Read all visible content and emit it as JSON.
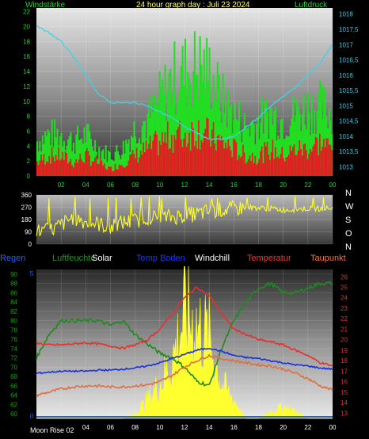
{
  "header": {
    "windstaerke": "Windstärke",
    "title": "24 hour graph day : Juli 23 2024",
    "luftdruck": "Luftdruck"
  },
  "legend": {
    "regen": "Regen",
    "luftfeuchte": "Luftfeuchte",
    "solar": "Solar",
    "temp_boden": "Temp Boden",
    "windchill": "Windchill",
    "temperatur": "Temperatur",
    "taupunkt": "Taupunkt"
  },
  "footer": {
    "moon": "Moon Rise 02"
  },
  "compass": [
    "N",
    "W",
    "S",
    "O",
    "N"
  ],
  "colors": {
    "wind_gust": "#22dd22",
    "wind_avg": "#e02020",
    "pressure": "#40d0e8",
    "direction": "#ffff20",
    "humidity": "#1f8a1f",
    "soil": "#1a2fe0",
    "temp": "#e83030",
    "dew": "#e07040",
    "solar": "#ffff30"
  },
  "x_ticks": [
    "02",
    "04",
    "06",
    "08",
    "10",
    "12",
    "14",
    "16",
    "18",
    "20",
    "22",
    "00"
  ],
  "chart_data": [
    {
      "type": "bar",
      "title": "24 hour graph day : Juli 23 2024",
      "ylabel": "Windstärke",
      "y2label": "Luftdruck",
      "ylim": [
        0,
        22.5
      ],
      "y_ticks": [
        0,
        2,
        4,
        6,
        8,
        10,
        12,
        14,
        16,
        18,
        20,
        22
      ],
      "y2lim": [
        1012.7,
        1018.2
      ],
      "y2_ticks": [
        "1013",
        "1013,5",
        "1014",
        "1014,5",
        "1015",
        "1015,5",
        "1016",
        "1016,5",
        "1017",
        "1017,5",
        "1018"
      ],
      "x": [
        0,
        1,
        2,
        3,
        4,
        5,
        6,
        7,
        8,
        9,
        10,
        11,
        12,
        13,
        14,
        15,
        16,
        17,
        18,
        19,
        20,
        21,
        22,
        23,
        24
      ],
      "series": [
        {
          "values": [
            5,
            6,
            6,
            5,
            6,
            4,
            3,
            4,
            7,
            8,
            11,
            14,
            15,
            16,
            15,
            11,
            9,
            7,
            8,
            9,
            8,
            9,
            10,
            10,
            9
          ]
        },
        {
          "values": [
            2,
            3,
            3,
            2,
            3,
            2,
            1,
            2,
            3,
            4,
            5,
            6,
            6,
            7,
            6,
            5,
            4,
            3,
            3,
            4,
            3,
            4,
            4,
            5,
            4
          ]
        },
        {
          "values": [
            1017.6,
            1017.4,
            1017.1,
            1016.6,
            1016.0,
            1015.4,
            1015.1,
            1015.1,
            1015.1,
            1015.0,
            1014.8,
            1014.6,
            1014.3,
            1014.1,
            1013.9,
            1013.9,
            1014.0,
            1014.3,
            1014.6,
            1015.0,
            1015.3,
            1015.6,
            1016.0,
            1016.4,
            1017.0
          ]
        }
      ]
    },
    {
      "type": "line",
      "ylim": [
        0,
        360
      ],
      "y_ticks": [
        0,
        90,
        180,
        270,
        360
      ],
      "x": [
        0,
        1,
        2,
        3,
        4,
        5,
        6,
        7,
        8,
        9,
        10,
        11,
        12,
        13,
        14,
        15,
        16,
        17,
        18,
        19,
        20,
        21,
        22,
        23,
        24
      ],
      "series": [
        {
          "values": [
            90,
            95,
            140,
            200,
            160,
            150,
            120,
            160,
            170,
            200,
            190,
            200,
            210,
            220,
            240,
            250,
            260,
            270,
            265,
            260,
            250,
            255,
            260,
            260,
            265
          ]
        }
      ]
    },
    {
      "type": "line",
      "ylim": [
        59,
        91
      ],
      "y_ticks": [
        60,
        62,
        64,
        66,
        68,
        70,
        72,
        74,
        76,
        78,
        80,
        82,
        84,
        86,
        88,
        90
      ],
      "y2lim": [
        12.5,
        26.7
      ],
      "y2_ticks": [
        13,
        14,
        15,
        16,
        17,
        18,
        19,
        20,
        21,
        22,
        23,
        24,
        25,
        26
      ],
      "y3_ticks": [
        0,
        5
      ],
      "x": [
        0,
        1,
        2,
        3,
        4,
        5,
        6,
        7,
        8,
        9,
        10,
        11,
        12,
        13,
        14,
        15,
        16,
        17,
        18,
        19,
        20,
        21,
        22,
        23,
        24
      ],
      "series": [
        {
          "name": "Luftfeuchte",
          "values": [
            72,
            77,
            80,
            80,
            80,
            80,
            79,
            80,
            77,
            75,
            73,
            72,
            70,
            67,
            66,
            74,
            80,
            84,
            87,
            88,
            86,
            86,
            87,
            88,
            88
          ]
        },
        {
          "name": "Temp Boden",
          "values": [
            16.8,
            16.9,
            17.0,
            17.0,
            17.0,
            17.1,
            17.1,
            17.2,
            17.3,
            17.5,
            17.8,
            18.2,
            18.6,
            19.0,
            19.2,
            18.9,
            18.5,
            18.3,
            18.2,
            18.0,
            17.8,
            17.6,
            17.5,
            17.3,
            17.2
          ]
        },
        {
          "name": "Temperatur",
          "values": [
            19.7,
            19.5,
            19.5,
            19.6,
            19.7,
            19.6,
            19.4,
            19.2,
            19.5,
            20.0,
            21.0,
            22.5,
            24.0,
            25.0,
            24.2,
            22.5,
            21.0,
            20.5,
            20.0,
            19.8,
            19.5,
            19.0,
            18.5,
            17.8,
            17.5
          ]
        },
        {
          "name": "Taupunkt",
          "values": [
            14.7,
            15.0,
            15.3,
            15.5,
            15.6,
            15.6,
            15.5,
            15.5,
            15.6,
            15.7,
            16.0,
            16.6,
            17.4,
            18.0,
            18.5,
            18.2,
            18.0,
            17.8,
            17.6,
            17.5,
            17.2,
            16.8,
            16.3,
            15.6,
            15.2
          ]
        },
        {
          "name": "Solar",
          "values": [
            0,
            0,
            0,
            0,
            0,
            0,
            0,
            0,
            0.2,
            0.8,
            1.5,
            2.5,
            4.5,
            4.0,
            3.5,
            1.5,
            0.8,
            0,
            0,
            0.3,
            0.5,
            0.3,
            0,
            0,
            0
          ]
        },
        {
          "name": "Regen",
          "values": [
            0,
            0,
            0,
            0,
            0,
            0,
            0,
            0,
            0,
            0,
            0,
            0,
            0,
            0,
            0,
            0,
            0,
            0,
            0,
            0,
            0,
            0,
            0,
            0,
            0
          ]
        }
      ]
    }
  ]
}
